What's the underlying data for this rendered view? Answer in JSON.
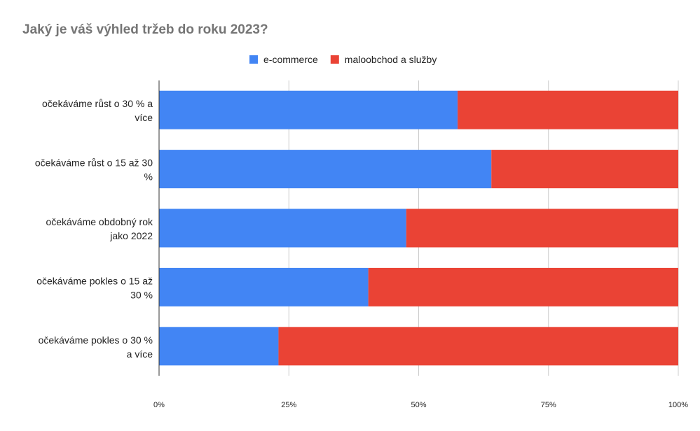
{
  "chart_data": {
    "type": "bar",
    "orientation": "horizontal",
    "stacked": "percent",
    "title": "Jaký je váš výhled tržeb do roku 2023?",
    "categories": [
      "očekáváme růst o 30 % a více",
      "očekáváme růst o 15 až 30 %",
      "očekáváme obdobný rok jako 2022",
      "očekáváme pokles o 15 až 30 %",
      "očekáváme pokles o 30 % a více"
    ],
    "category_lines": [
      [
        "očekáváme růst o 30 % a",
        "více"
      ],
      [
        "očekáváme růst o 15 až 30",
        "%"
      ],
      [
        "očekáváme obdobný rok",
        "jako 2022"
      ],
      [
        "očekáváme pokles o 15 až",
        "30 %"
      ],
      [
        "očekáváme pokles o 30 %",
        "a více"
      ]
    ],
    "series": [
      {
        "name": "e-commerce",
        "color": "#4285f4",
        "values": [
          57.5,
          64,
          47.6,
          40.3,
          23.0
        ]
      },
      {
        "name": "maloobchod a služby",
        "color": "#ea4335",
        "values": [
          42.5,
          36,
          52.4,
          59.7,
          77.0
        ]
      }
    ],
    "x_ticks": [
      "0%",
      "25%",
      "50%",
      "75%",
      "100%"
    ],
    "xlim": [
      0,
      100
    ],
    "legend_position": "top",
    "grid": true
  }
}
